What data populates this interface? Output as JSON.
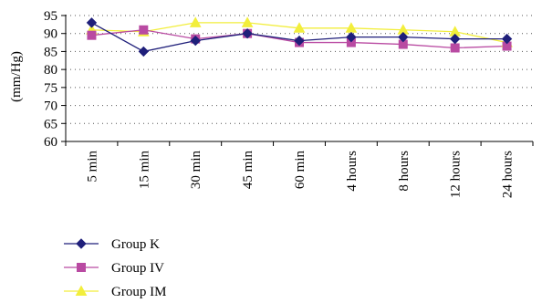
{
  "chart_data": {
    "type": "line",
    "title": "",
    "xlabel": "",
    "ylabel": "(mm/Hg)",
    "categories": [
      "5 min",
      "15 min",
      "30 min",
      "45 min",
      "60 min",
      "4 hours",
      "8 hours",
      "12 hours",
      "24 hours"
    ],
    "ylim": [
      60,
      95
    ],
    "yticks": [
      60,
      65,
      70,
      75,
      80,
      85,
      90,
      95
    ],
    "grid": true,
    "legend_position": "bottom-left",
    "series": [
      {
        "name": "Group K",
        "color": "#1f1f7a",
        "marker": "diamond",
        "values": [
          93,
          85,
          88,
          90,
          88,
          89,
          89,
          88.5,
          88.5
        ]
      },
      {
        "name": "Group IV",
        "color": "#b94aa2",
        "marker": "square",
        "values": [
          89.5,
          91,
          88.5,
          90,
          87.5,
          87.5,
          87,
          86,
          86.5
        ]
      },
      {
        "name": "Group IM",
        "color": "#f2ee3c",
        "marker": "triangle",
        "values": [
          91,
          90.5,
          93,
          93,
          91.5,
          91.5,
          91,
          90.5,
          87.5
        ]
      }
    ]
  }
}
